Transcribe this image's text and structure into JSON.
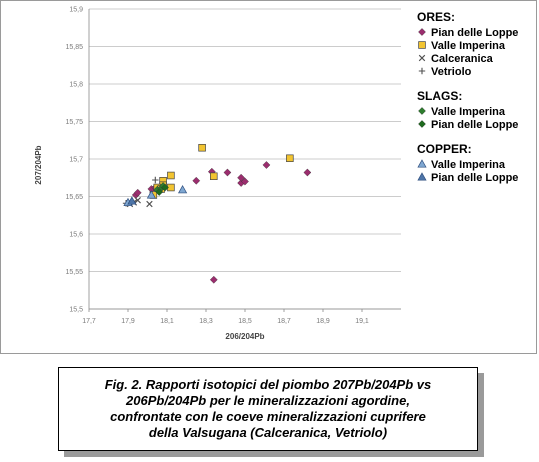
{
  "chart_data": {
    "type": "scatter",
    "title": "",
    "xlabel": "206/204Pb",
    "ylabel": "207/204Pb",
    "xlim": [
      17.7,
      19.3
    ],
    "ylim": [
      15.5,
      15.9
    ],
    "x_ticks": [
      17.7,
      17.9,
      18.1,
      18.3,
      18.5,
      18.7,
      18.9,
      19.1
    ],
    "x_tick_labels": [
      "17,7",
      "17,9",
      "18,1",
      "18,3",
      "18,5",
      "18,7",
      "18,9",
      "19,1"
    ],
    "y_ticks": [
      15.5,
      15.55,
      15.6,
      15.65,
      15.7,
      15.75,
      15.8,
      15.85,
      15.9
    ],
    "y_tick_labels": [
      "15,5",
      "15,55",
      "15,6",
      "15,65",
      "15,7",
      "15,75",
      "15,8",
      "15,85",
      "15,9"
    ],
    "grid": "horizontal",
    "legend_position": "right",
    "legend": [
      {
        "heading": "ORES:",
        "items": [
          {
            "label": "Pian delle Loppe",
            "series": 0
          },
          {
            "label": "Valle Imperina",
            "series": 1
          },
          {
            "label": "Calceranica",
            "series": 2
          },
          {
            "label": "Vetriolo",
            "series": 3
          }
        ]
      },
      {
        "heading": "SLAGS:",
        "items": [
          {
            "label": "Valle Imperina",
            "series": 4
          },
          {
            "label": "Pian delle Loppe",
            "series": 5
          }
        ]
      },
      {
        "heading": "COPPER:",
        "items": [
          {
            "label": "Valle Imperina",
            "series": 6
          },
          {
            "label": "Pian delle Loppe",
            "series": 7
          }
        ]
      }
    ],
    "series": [
      {
        "name": "Pian delle Loppe",
        "group": "ORES",
        "marker": "diamond",
        "color": "#9B2D6E",
        "points": [
          [
            17.94,
            15.652
          ],
          [
            17.95,
            15.655
          ],
          [
            18.02,
            15.66
          ],
          [
            18.04,
            15.662
          ],
          [
            18.25,
            15.671
          ],
          [
            18.33,
            15.683
          ],
          [
            18.41,
            15.682
          ],
          [
            18.48,
            15.668
          ],
          [
            18.48,
            15.675
          ],
          [
            18.5,
            15.67
          ],
          [
            18.61,
            15.692
          ],
          [
            18.82,
            15.682
          ],
          [
            18.34,
            15.539
          ]
        ]
      },
      {
        "name": "Valle Imperina",
        "group": "ORES",
        "marker": "square",
        "color": "#F2C431",
        "points": [
          [
            18.28,
            15.715
          ],
          [
            18.73,
            15.701
          ],
          [
            18.12,
            15.678
          ],
          [
            18.08,
            15.671
          ],
          [
            18.34,
            15.677
          ],
          [
            18.08,
            15.665
          ],
          [
            18.05,
            15.662
          ],
          [
            18.03,
            15.652
          ],
          [
            18.12,
            15.662
          ],
          [
            18.07,
            15.66
          ]
        ]
      },
      {
        "name": "Calceranica",
        "group": "ORES",
        "marker": "x",
        "color": "#505050",
        "points": [
          [
            17.91,
            15.64
          ],
          [
            17.93,
            15.642
          ],
          [
            17.95,
            15.645
          ],
          [
            18.01,
            15.64
          ]
        ]
      },
      {
        "name": "Vetriolo",
        "group": "ORES",
        "marker": "plus",
        "color": "#505050",
        "points": [
          [
            17.89,
            15.641
          ],
          [
            17.92,
            15.644
          ],
          [
            18.04,
            15.672
          ]
        ]
      },
      {
        "name": "Valle Imperina",
        "group": "SLAGS",
        "marker": "diamond",
        "color": "#2E7D2E",
        "points": [
          [
            18.05,
            15.659
          ],
          [
            18.07,
            15.661
          ],
          [
            18.08,
            15.664
          ]
        ]
      },
      {
        "name": "Pian delle Loppe",
        "group": "SLAGS",
        "marker": "diamond",
        "color": "#1E6B1E",
        "points": [
          [
            18.06,
            15.656
          ],
          [
            18.09,
            15.662
          ]
        ]
      },
      {
        "name": "Valle Imperina",
        "group": "COPPER",
        "marker": "triangle",
        "color": "#7FA7D1",
        "points": [
          [
            18.18,
            15.659
          ],
          [
            18.02,
            15.652
          ],
          [
            17.9,
            15.642
          ]
        ]
      },
      {
        "name": "Pian delle Loppe",
        "group": "COPPER",
        "marker": "triangle",
        "color": "#4E75A8",
        "points": [
          [
            17.92,
            15.644
          ]
        ]
      }
    ]
  },
  "caption": {
    "lines": [
      "Fig. 2. Rapporti isotopici del piombo 207Pb/204Pb vs",
      "206Pb/204Pb per le mineralizzazioni agordine,",
      "confrontate con le coeve mineralizzazioni cuprifere",
      "della Valsugana (Calceranica, Vetriolo)"
    ]
  }
}
